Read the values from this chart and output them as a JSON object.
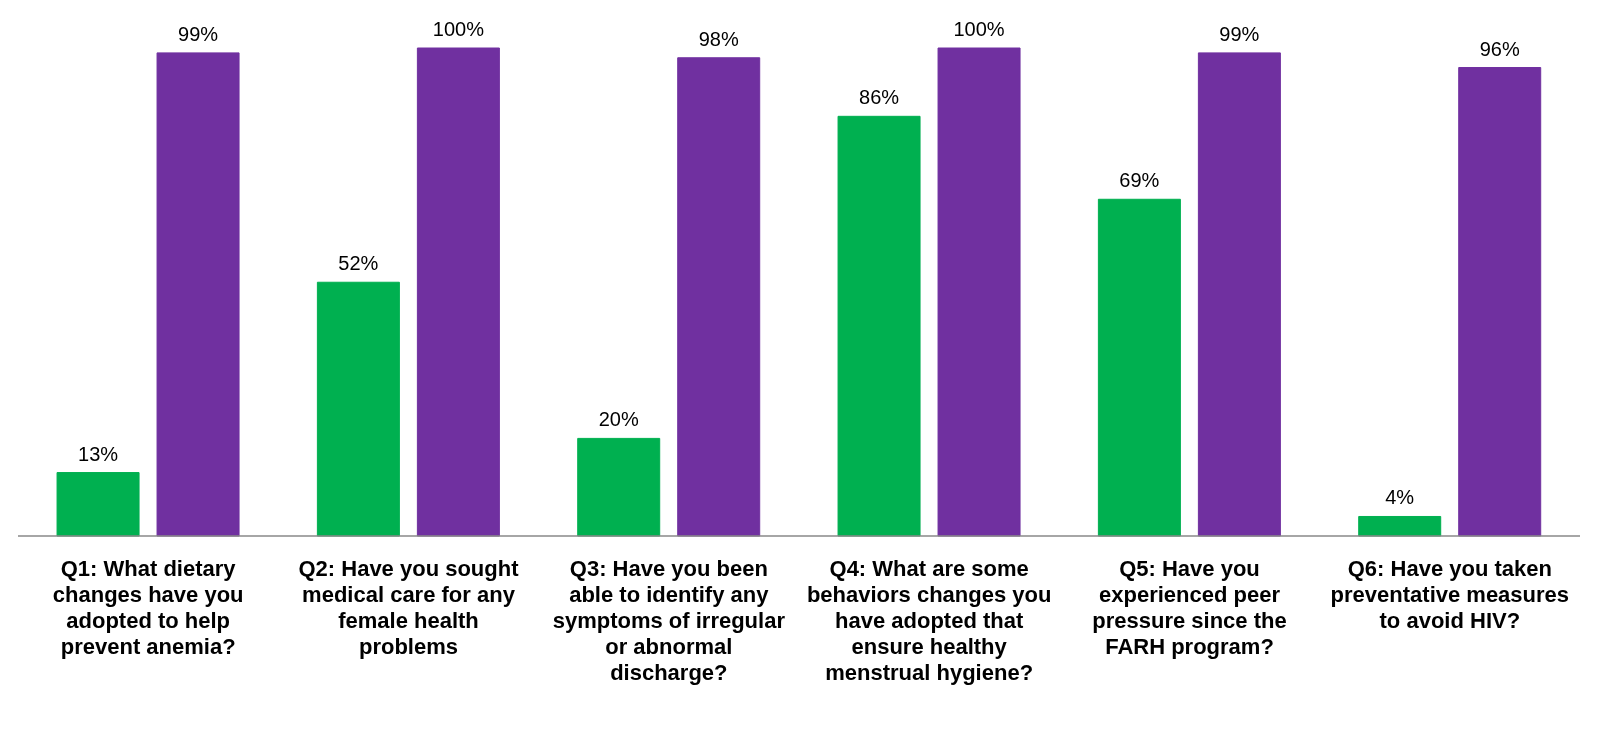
{
  "chart_data": {
    "type": "bar",
    "categories": [
      "Q1: What dietary changes have you adopted to help prevent anemia?",
      "Q2: Have you sought medical care for any female health problems",
      "Q3: Have you been able to identify any symptoms of irregular or abnormal discharge?",
      "Q4: What are some behaviors changes you have adopted that ensure healthy menstrual hygiene?",
      "Q5: Have you experienced peer pressure since the FARH program?",
      "Q6: Have you taken preventative measures to avoid HIV?"
    ],
    "series": [
      {
        "color": "#00b050",
        "values": [
          13,
          52,
          20,
          86,
          69,
          4
        ],
        "value_labels": [
          "13%",
          "52%",
          "20%",
          "86%",
          "69%",
          "4%"
        ]
      },
      {
        "color": "#7030a0",
        "values": [
          99,
          100,
          98,
          100,
          99,
          96
        ],
        "value_labels": [
          "99%",
          "100%",
          "98%",
          "100%",
          "99%",
          "96%"
        ]
      }
    ],
    "legend": false,
    "grid": false
  }
}
